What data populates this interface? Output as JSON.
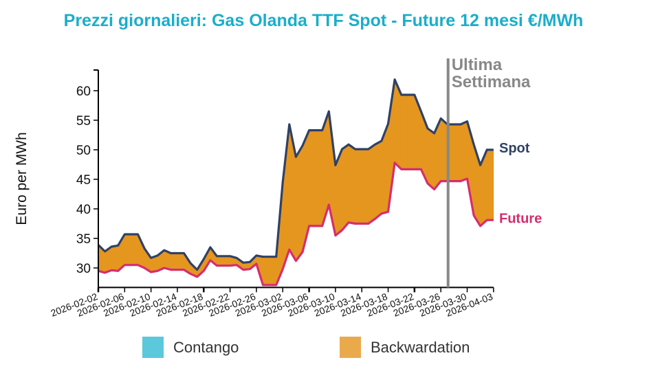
{
  "chart_data": {
    "type": "area",
    "title": "Prezzi giornalieri: Gas Olanda TTF Spot - Future 12 mesi €/MWh",
    "ylabel": "Euro per MWh",
    "xlabel": "",
    "start_date": "2026-02-02",
    "ylim": [
      26.7,
      63.5
    ],
    "yticks": [
      30,
      35,
      40,
      45,
      50,
      55,
      60
    ],
    "xtick_labels": [
      "2026-02-02",
      "2026-02-06",
      "2026-02-10",
      "2026-02-14",
      "2026-02-18",
      "2026-02-22",
      "2026-02-26",
      "2026-03-02",
      "2026-03-06",
      "2026-03-10",
      "2026-03-14",
      "2026-03-18",
      "2026-03-22",
      "2026-03-26",
      "2026-03-30",
      "2026-04-03"
    ],
    "series": [
      {
        "name": "Spot",
        "color": "#2f4166",
        "values": [
          33.9,
          32.8,
          33.6,
          33.8,
          35.7,
          35.7,
          35.7,
          33.3,
          31.7,
          32.1,
          33.0,
          32.5,
          32.5,
          32.5,
          30.8,
          29.7,
          31.5,
          33.5,
          32.0,
          32.0,
          32.0,
          31.7,
          30.9,
          31.0,
          32.1,
          31.9,
          31.9,
          31.9,
          44.5,
          54.3,
          48.8,
          50.7,
          53.3,
          53.3,
          53.3,
          56.5,
          47.4,
          50.1,
          50.9,
          50.1,
          50.1,
          50.1,
          50.9,
          51.5,
          54.4,
          61.9,
          59.3,
          59.3,
          59.3,
          56.5,
          53.6,
          52.8,
          55.3,
          54.3,
          54.3,
          54.3,
          54.8,
          50.9,
          47.4,
          50.0,
          50.0
        ]
      },
      {
        "name": "Future",
        "color": "#d62d6e",
        "values": [
          29.5,
          29.2,
          29.6,
          29.5,
          30.5,
          30.5,
          30.5,
          30.0,
          29.3,
          29.5,
          30.0,
          29.7,
          29.7,
          29.7,
          29.0,
          28.5,
          29.5,
          31.3,
          30.4,
          30.4,
          30.4,
          30.5,
          29.7,
          29.8,
          30.7,
          27.1,
          27.1,
          27.1,
          29.8,
          33.1,
          31.2,
          32.7,
          37.1,
          37.1,
          37.1,
          40.7,
          35.5,
          36.4,
          37.7,
          37.5,
          37.5,
          37.5,
          38.3,
          39.2,
          39.5,
          47.8,
          46.7,
          46.7,
          46.7,
          46.7,
          44.3,
          43.3,
          44.7,
          44.7,
          44.7,
          44.7,
          45.1,
          38.9,
          37.1,
          38.1,
          38.1
        ]
      }
    ],
    "fill_colors": {
      "contango": "#5bc8dc",
      "backwardation": "#e5961e"
    },
    "legend": [
      {
        "label": "Contango",
        "color": "#5bc8dc"
      },
      {
        "label": "Backwardation",
        "color": "#eaaa4c"
      }
    ],
    "annotation": {
      "line1": "Ultima",
      "line2": "Settimana",
      "day_index": 53.1,
      "color": "#888888"
    },
    "legend_position": "bottom"
  }
}
